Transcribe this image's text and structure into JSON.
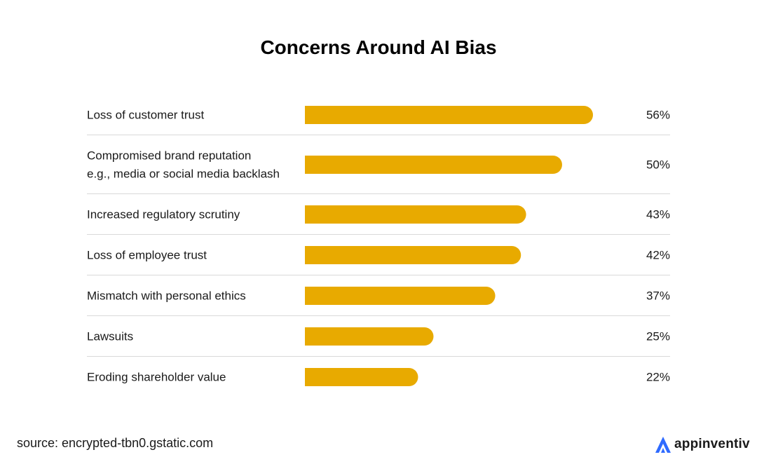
{
  "chart_data": {
    "type": "bar",
    "orientation": "horizontal",
    "title": "Concerns Around AI Bias",
    "categories": [
      [
        "Loss of customer trust"
      ],
      [
        "Compromised brand reputation",
        "e.g., media or social media backlash"
      ],
      [
        "Increased regulatory scrutiny"
      ],
      [
        "Loss of employee trust"
      ],
      [
        "Mismatch with personal ethics"
      ],
      [
        "Lawsuits"
      ],
      [
        "Eroding shareholder value"
      ]
    ],
    "values": [
      56,
      50,
      43,
      42,
      37,
      25,
      22
    ],
    "value_labels": [
      "56%",
      "50%",
      "43%",
      "42%",
      "37%",
      "25%",
      "22%"
    ],
    "unit": "%",
    "xlim": [
      0,
      56
    ],
    "bar_color": "#E8AA00",
    "grid": false
  },
  "footer": {
    "source": "source: encrypted-tbn0.gstatic.com",
    "brand_name": "appinventiv",
    "brand_color": "#2F6BFF"
  }
}
